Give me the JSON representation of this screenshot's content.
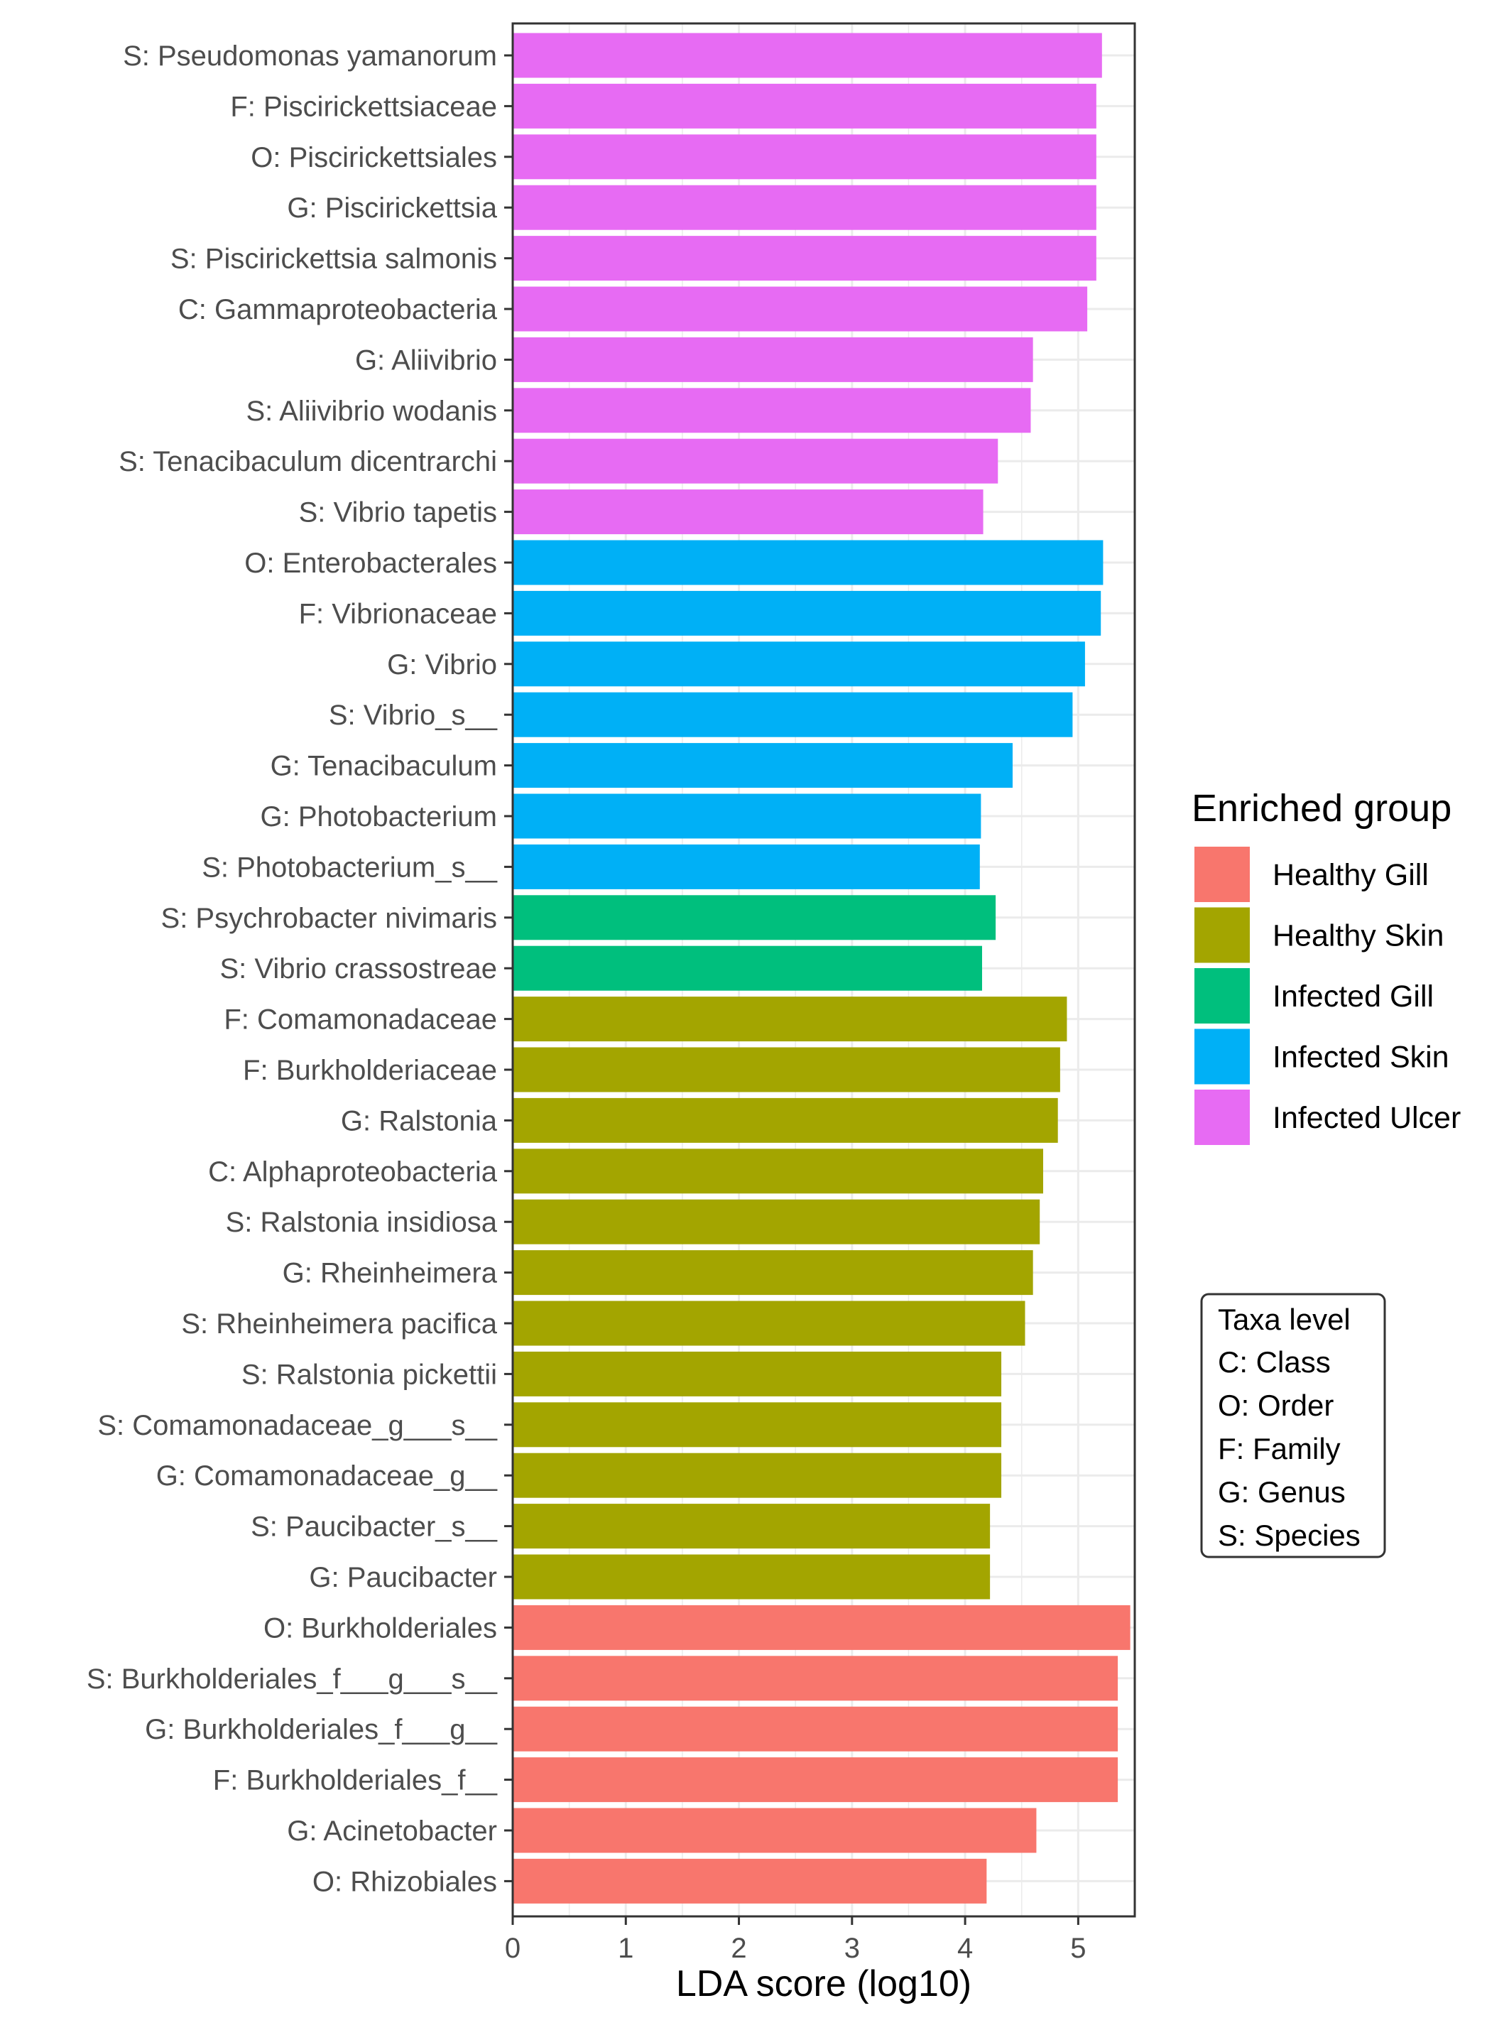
{
  "chart_data": {
    "type": "bar",
    "orientation": "horizontal",
    "xlabel": "LDA score (log10)",
    "ylabel": "",
    "xlim": [
      0,
      5.5
    ],
    "xticks": [
      0,
      1,
      2,
      3,
      4,
      5
    ],
    "grid": true,
    "categories": [
      "S: Pseudomonas yamanorum",
      "F: Piscirickettsiaceae",
      "O: Piscirickettsiales",
      "G: Piscirickettsia",
      "S: Piscirickettsia salmonis",
      "C: Gammaproteobacteria",
      "G: Aliivibrio",
      "S: Aliivibrio wodanis",
      "S: Tenacibaculum dicentrarchi",
      "S: Vibrio tapetis",
      "O: Enterobacterales",
      "F: Vibrionaceae",
      "G: Vibrio",
      "S: Vibrio_s__",
      "G: Tenacibaculum",
      "G: Photobacterium",
      "S: Photobacterium_s__",
      "S: Psychrobacter nivimaris",
      "S: Vibrio crassostreae",
      "F: Comamonadaceae",
      "F: Burkholderiaceae",
      "G: Ralstonia",
      "C: Alphaproteobacteria",
      "S: Ralstonia insidiosa",
      "G: Rheinheimera",
      "S: Rheinheimera pacifica",
      "S: Ralstonia pickettii",
      "S: Comamonadaceae_g___s__",
      "G: Comamonadaceae_g__",
      "S: Paucibacter_s__",
      "G: Paucibacter",
      "O: Burkholderiales",
      "S: Burkholderiales_f___g___s__",
      "G: Burkholderiales_f___g__",
      "F: Burkholderiales_f__",
      "G: Acinetobacter",
      "O: Rhizobiales"
    ],
    "values": [
      5.21,
      5.16,
      5.16,
      5.16,
      5.16,
      5.08,
      4.6,
      4.58,
      4.29,
      4.16,
      5.22,
      5.2,
      5.06,
      4.95,
      4.42,
      4.14,
      4.13,
      4.27,
      4.15,
      4.9,
      4.84,
      4.82,
      4.69,
      4.66,
      4.6,
      4.53,
      4.32,
      4.32,
      4.32,
      4.22,
      4.22,
      5.46,
      5.35,
      5.35,
      5.35,
      4.63,
      4.19
    ],
    "groups": [
      "Infected Ulcer",
      "Infected Ulcer",
      "Infected Ulcer",
      "Infected Ulcer",
      "Infected Ulcer",
      "Infected Ulcer",
      "Infected Ulcer",
      "Infected Ulcer",
      "Infected Ulcer",
      "Infected Ulcer",
      "Infected Skin",
      "Infected Skin",
      "Infected Skin",
      "Infected Skin",
      "Infected Skin",
      "Infected Skin",
      "Infected Skin",
      "Infected Gill",
      "Infected Gill",
      "Healthy Skin",
      "Healthy Skin",
      "Healthy Skin",
      "Healthy Skin",
      "Healthy Skin",
      "Healthy Skin",
      "Healthy Skin",
      "Healthy Skin",
      "Healthy Skin",
      "Healthy Skin",
      "Healthy Skin",
      "Healthy Skin",
      "Healthy Gill",
      "Healthy Gill",
      "Healthy Gill",
      "Healthy Gill",
      "Healthy Gill",
      "Healthy Gill"
    ],
    "legend": {
      "title": "Enriched group",
      "placement": "right",
      "items": [
        {
          "label": "Healthy Gill",
          "color": "#F8766D"
        },
        {
          "label": "Healthy Skin",
          "color": "#A3A500"
        },
        {
          "label": "Infected Gill",
          "color": "#00BF7D"
        },
        {
          "label": "Infected Skin",
          "color": "#00B0F6"
        },
        {
          "label": "Infected Ulcer",
          "color": "#E76BF3"
        }
      ]
    },
    "annotation": {
      "title": "Taxa level",
      "lines": [
        "C: Class",
        "O: Order",
        "F: Family",
        "G: Genus",
        "S: Species"
      ]
    }
  }
}
